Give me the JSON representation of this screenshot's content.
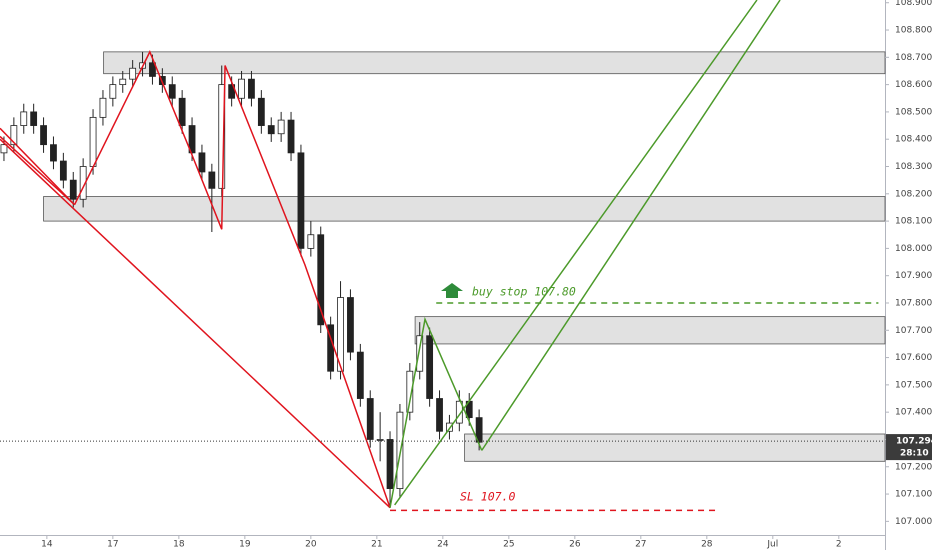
{
  "chart_data": {
    "type": "candlestick",
    "xlim": [
      -0.71,
      12.7
    ],
    "ylim": [
      106.95,
      108.91
    ],
    "xticks": [
      {
        "value": 0,
        "label": "14"
      },
      {
        "value": 1,
        "label": "17"
      },
      {
        "value": 2,
        "label": "18"
      },
      {
        "value": 3,
        "label": "19"
      },
      {
        "value": 4,
        "label": "20"
      },
      {
        "value": 5,
        "label": "21"
      },
      {
        "value": 6,
        "label": "24"
      },
      {
        "value": 7,
        "label": "25"
      },
      {
        "value": 8,
        "label": "26"
      },
      {
        "value": 9,
        "label": "27"
      },
      {
        "value": 10,
        "label": "28"
      },
      {
        "value": 11,
        "label": "Jul"
      },
      {
        "value": 12,
        "label": "2"
      }
    ],
    "yticks": [
      {
        "value": 107.0,
        "label": "107.000"
      },
      {
        "value": 107.1,
        "label": "107.100"
      },
      {
        "value": 107.2,
        "label": "107.200"
      },
      {
        "value": 107.3,
        "label": "107.300"
      },
      {
        "value": 107.4,
        "label": "107.400"
      },
      {
        "value": 107.5,
        "label": "107.500"
      },
      {
        "value": 107.6,
        "label": "107.600"
      },
      {
        "value": 107.7,
        "label": "107.700"
      },
      {
        "value": 107.8,
        "label": "107.800"
      },
      {
        "value": 107.9,
        "label": "107.900"
      },
      {
        "value": 108.0,
        "label": "108.000"
      },
      {
        "value": 108.1,
        "label": "108.100"
      },
      {
        "value": 108.2,
        "label": "108.200"
      },
      {
        "value": 108.3,
        "label": "108.300"
      },
      {
        "value": 108.4,
        "label": "108.400"
      },
      {
        "value": 108.5,
        "label": "108.500"
      },
      {
        "value": 108.6,
        "label": "108.600"
      },
      {
        "value": 108.7,
        "label": "108.700"
      },
      {
        "value": 108.8,
        "label": "108.800"
      },
      {
        "value": 108.9,
        "label": "108.900"
      }
    ],
    "x": [
      -0.65,
      -0.5,
      -0.35,
      -0.2,
      -0.05,
      0.1,
      0.25,
      0.4,
      0.55,
      0.7,
      0.85,
      1.0,
      1.15,
      1.3,
      1.45,
      1.6,
      1.75,
      1.9,
      2.05,
      2.2,
      2.35,
      2.5,
      2.65,
      2.8,
      2.95,
      3.1,
      3.25,
      3.4,
      3.55,
      3.7,
      3.85,
      4.0,
      4.15,
      4.3,
      4.45,
      4.6,
      4.75,
      4.9,
      5.05,
      5.2,
      5.35,
      5.5,
      5.65,
      5.8,
      5.95,
      6.1,
      6.25,
      6.4,
      6.55
    ],
    "open": [
      108.35,
      108.38,
      108.45,
      108.5,
      108.45,
      108.38,
      108.32,
      108.25,
      108.18,
      108.3,
      108.48,
      108.55,
      108.6,
      108.62,
      108.66,
      108.68,
      108.63,
      108.6,
      108.55,
      108.45,
      108.35,
      108.28,
      108.22,
      108.6,
      108.55,
      108.62,
      108.55,
      108.45,
      108.42,
      108.47,
      108.35,
      108.0,
      108.05,
      107.72,
      107.55,
      107.82,
      107.62,
      107.45,
      107.3,
      107.3,
      107.12,
      107.4,
      107.55,
      107.68,
      107.45,
      107.33,
      107.36,
      107.44,
      107.38
    ],
    "high": [
      108.41,
      108.48,
      108.53,
      108.53,
      108.48,
      108.41,
      108.35,
      108.28,
      108.33,
      108.51,
      108.58,
      108.63,
      108.65,
      108.69,
      108.72,
      108.71,
      108.66,
      108.63,
      108.58,
      108.48,
      108.38,
      108.31,
      108.67,
      108.63,
      108.65,
      108.65,
      108.58,
      108.48,
      108.5,
      108.5,
      108.38,
      108.1,
      108.08,
      107.75,
      107.88,
      107.85,
      107.65,
      107.48,
      107.4,
      107.33,
      107.43,
      107.58,
      107.73,
      107.71,
      107.48,
      107.39,
      107.48,
      107.47,
      107.41
    ],
    "low": [
      108.32,
      108.35,
      108.42,
      108.42,
      108.35,
      108.29,
      108.22,
      108.15,
      108.15,
      108.27,
      108.45,
      108.52,
      108.57,
      108.59,
      108.63,
      108.6,
      108.57,
      108.52,
      108.42,
      108.32,
      108.25,
      108.06,
      108.19,
      108.52,
      108.52,
      108.52,
      108.42,
      108.39,
      108.39,
      108.32,
      107.97,
      107.97,
      107.69,
      107.52,
      107.52,
      107.59,
      107.42,
      107.27,
      107.22,
      107.05,
      107.09,
      107.37,
      107.52,
      107.42,
      107.3,
      107.3,
      107.33,
      107.35,
      107.26
    ],
    "close": [
      108.38,
      108.45,
      108.5,
      108.45,
      108.38,
      108.32,
      108.25,
      108.18,
      108.3,
      108.48,
      108.55,
      108.6,
      108.62,
      108.66,
      108.68,
      108.63,
      108.6,
      108.55,
      108.45,
      108.35,
      108.28,
      108.22,
      108.6,
      108.55,
      108.62,
      108.55,
      108.45,
      108.42,
      108.47,
      108.35,
      108.0,
      108.05,
      107.72,
      107.55,
      107.82,
      107.62,
      107.45,
      107.3,
      107.3,
      107.12,
      107.4,
      107.55,
      107.68,
      107.45,
      107.33,
      107.36,
      107.44,
      107.38,
      107.29
    ],
    "up_color": "#ffffff",
    "down_color": "#222222",
    "zones": [
      {
        "x": [
          0.86,
          12.7
        ],
        "y": [
          108.64,
          108.72
        ]
      },
      {
        "x": [
          -0.05,
          12.7
        ],
        "y": [
          108.1,
          108.19
        ]
      },
      {
        "x": [
          5.58,
          12.7
        ],
        "y": [
          107.65,
          107.75
        ]
      },
      {
        "x": [
          6.33,
          12.7
        ],
        "y": [
          107.22,
          107.32
        ]
      }
    ],
    "lines": [
      {
        "color": "#e0141e",
        "x": [
          -0.71,
          0.42
        ],
        "y": [
          108.44,
          108.16
        ]
      },
      {
        "color": "#e0141e",
        "x": [
          -0.71,
          0.42
        ],
        "y": [
          108.41,
          108.16
        ]
      },
      {
        "color": "#e0141e",
        "x": [
          -0.71,
          5.2
        ],
        "y": [
          108.4,
          107.05
        ]
      },
      {
        "color": "#e0141e",
        "x": [
          0.42,
          1.56,
          2.17,
          2.65,
          2.7,
          3.91,
          5.2
        ],
        "y": [
          108.16,
          108.72,
          108.36,
          108.07,
          108.67,
          107.94,
          107.05
        ]
      },
      {
        "color": "#4c9a2a",
        "x": [
          5.2,
          5.73,
          6.59
        ],
        "y": [
          107.05,
          107.74,
          107.26
        ]
      },
      {
        "color": "#4c9a2a",
        "x": [
          5.27,
          10.76
        ],
        "y": [
          107.06,
          108.91
        ]
      },
      {
        "color": "#4c9a2a",
        "x": [
          6.59,
          11.11
        ],
        "y": [
          107.26,
          108.91
        ]
      }
    ],
    "dashed_lines": [
      {
        "color": "#4c9a2a",
        "x": [
          5.9,
          12.6
        ],
        "y": [
          107.8,
          107.8
        ]
      },
      {
        "color": "#e0141e",
        "x": [
          5.2,
          10.17
        ],
        "y": [
          107.04,
          107.04
        ]
      }
    ],
    "buy_stop_text": "buy stop 107.80",
    "sl_text": "SL 107.0",
    "last_price": 107.294,
    "last_price_label": "107.294",
    "countdown": "28:10"
  }
}
